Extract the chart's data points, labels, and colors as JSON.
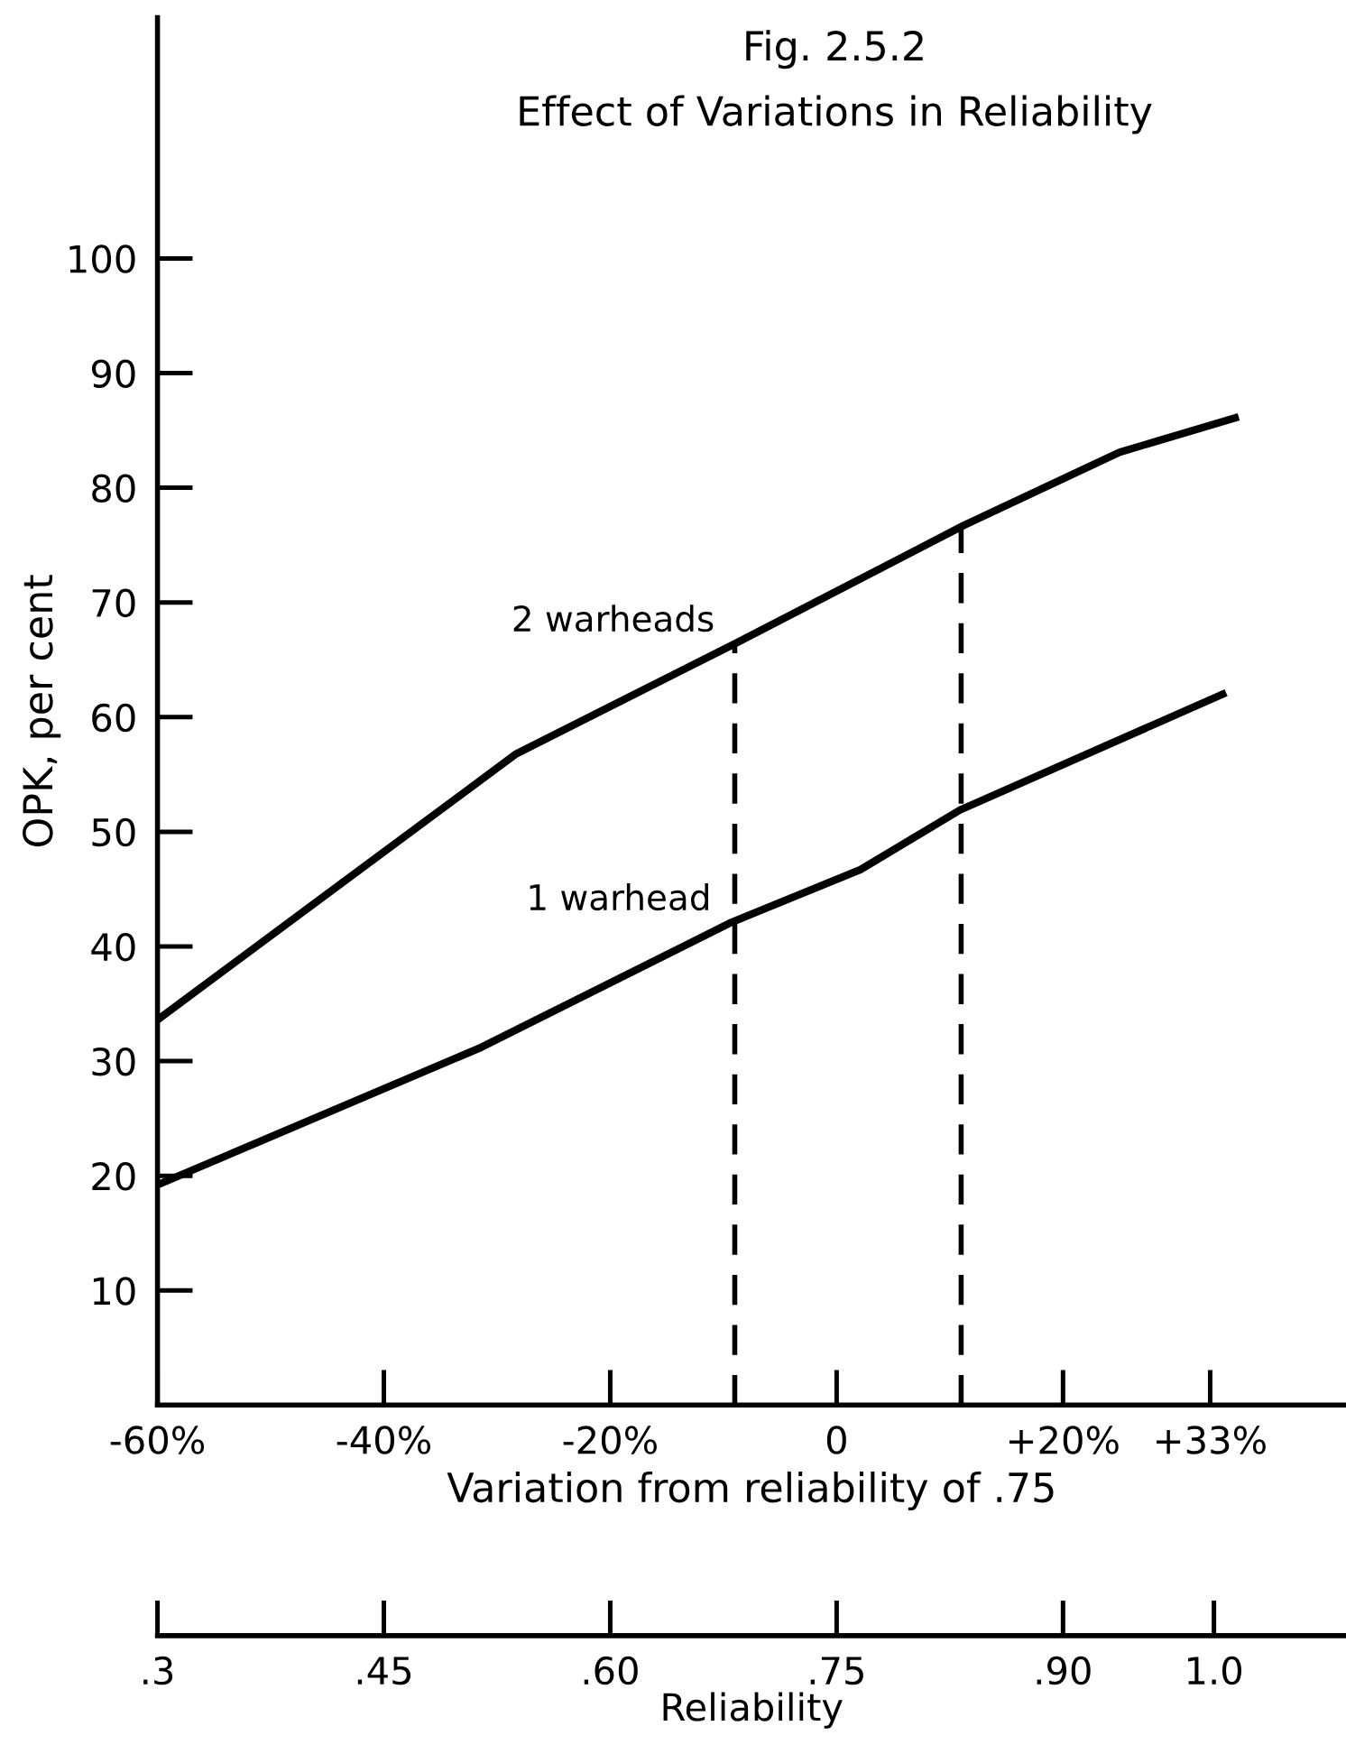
{
  "chart_data": {
    "type": "line",
    "title": "Fig. 2.5.2",
    "subtitle": "Effect of Variations in Reliability",
    "xlabel": "Variation from reliability of .75",
    "ylabel": "OPK, per cent",
    "x2label": "Reliability",
    "series": [
      {
        "name": "2 warheads",
        "color": "#000000",
        "x": [
          -60,
          -45.8,
          -28.3,
          -9,
          11.2,
          25,
          35.2
        ],
        "values": [
          33.6,
          44,
          56.8,
          66.4,
          76.7,
          83.1,
          86.1
        ]
      },
      {
        "name": "1 warhead",
        "color": "#000000",
        "x": [
          -60,
          -31.4,
          -9.3,
          2.1,
          10.9,
          34.1
        ],
        "values": [
          19.2,
          31.2,
          42.1,
          46.7,
          51.9,
          62.0
        ]
      }
    ],
    "xlim": [
      -60,
      45
    ],
    "ylim": [
      0,
      121
    ],
    "xticks": [
      {
        "value": -60,
        "label": "-60%"
      },
      {
        "value": -40,
        "label": "-40%"
      },
      {
        "value": -20,
        "label": "-20%"
      },
      0,
      {
        "value": 20,
        "label": "+20%"
      },
      {
        "value": 33,
        "label": "+33%"
      }
    ],
    "yticks": [
      10,
      20,
      30,
      40,
      50,
      60,
      70,
      80,
      90,
      100
    ],
    "x2lim": [
      0.3,
      1.0875
    ],
    "x2ticks": [
      {
        "value": 0.3,
        "label": ".3"
      },
      {
        "value": 0.45,
        "label": ".45"
      },
      {
        "value": 0.6,
        "label": ".60"
      },
      {
        "value": 0.75,
        "label": ".75"
      },
      {
        "value": 0.9,
        "label": ".90"
      },
      {
        "value": 1.0,
        "label": "1.0"
      }
    ],
    "ref_lines": [
      {
        "axis": "x",
        "value": -9,
        "line_style": "dashed"
      },
      {
        "axis": "x",
        "value": 11,
        "line_style": "dashed"
      }
    ],
    "grid": false,
    "marker": "none",
    "line_style": "solid"
  }
}
